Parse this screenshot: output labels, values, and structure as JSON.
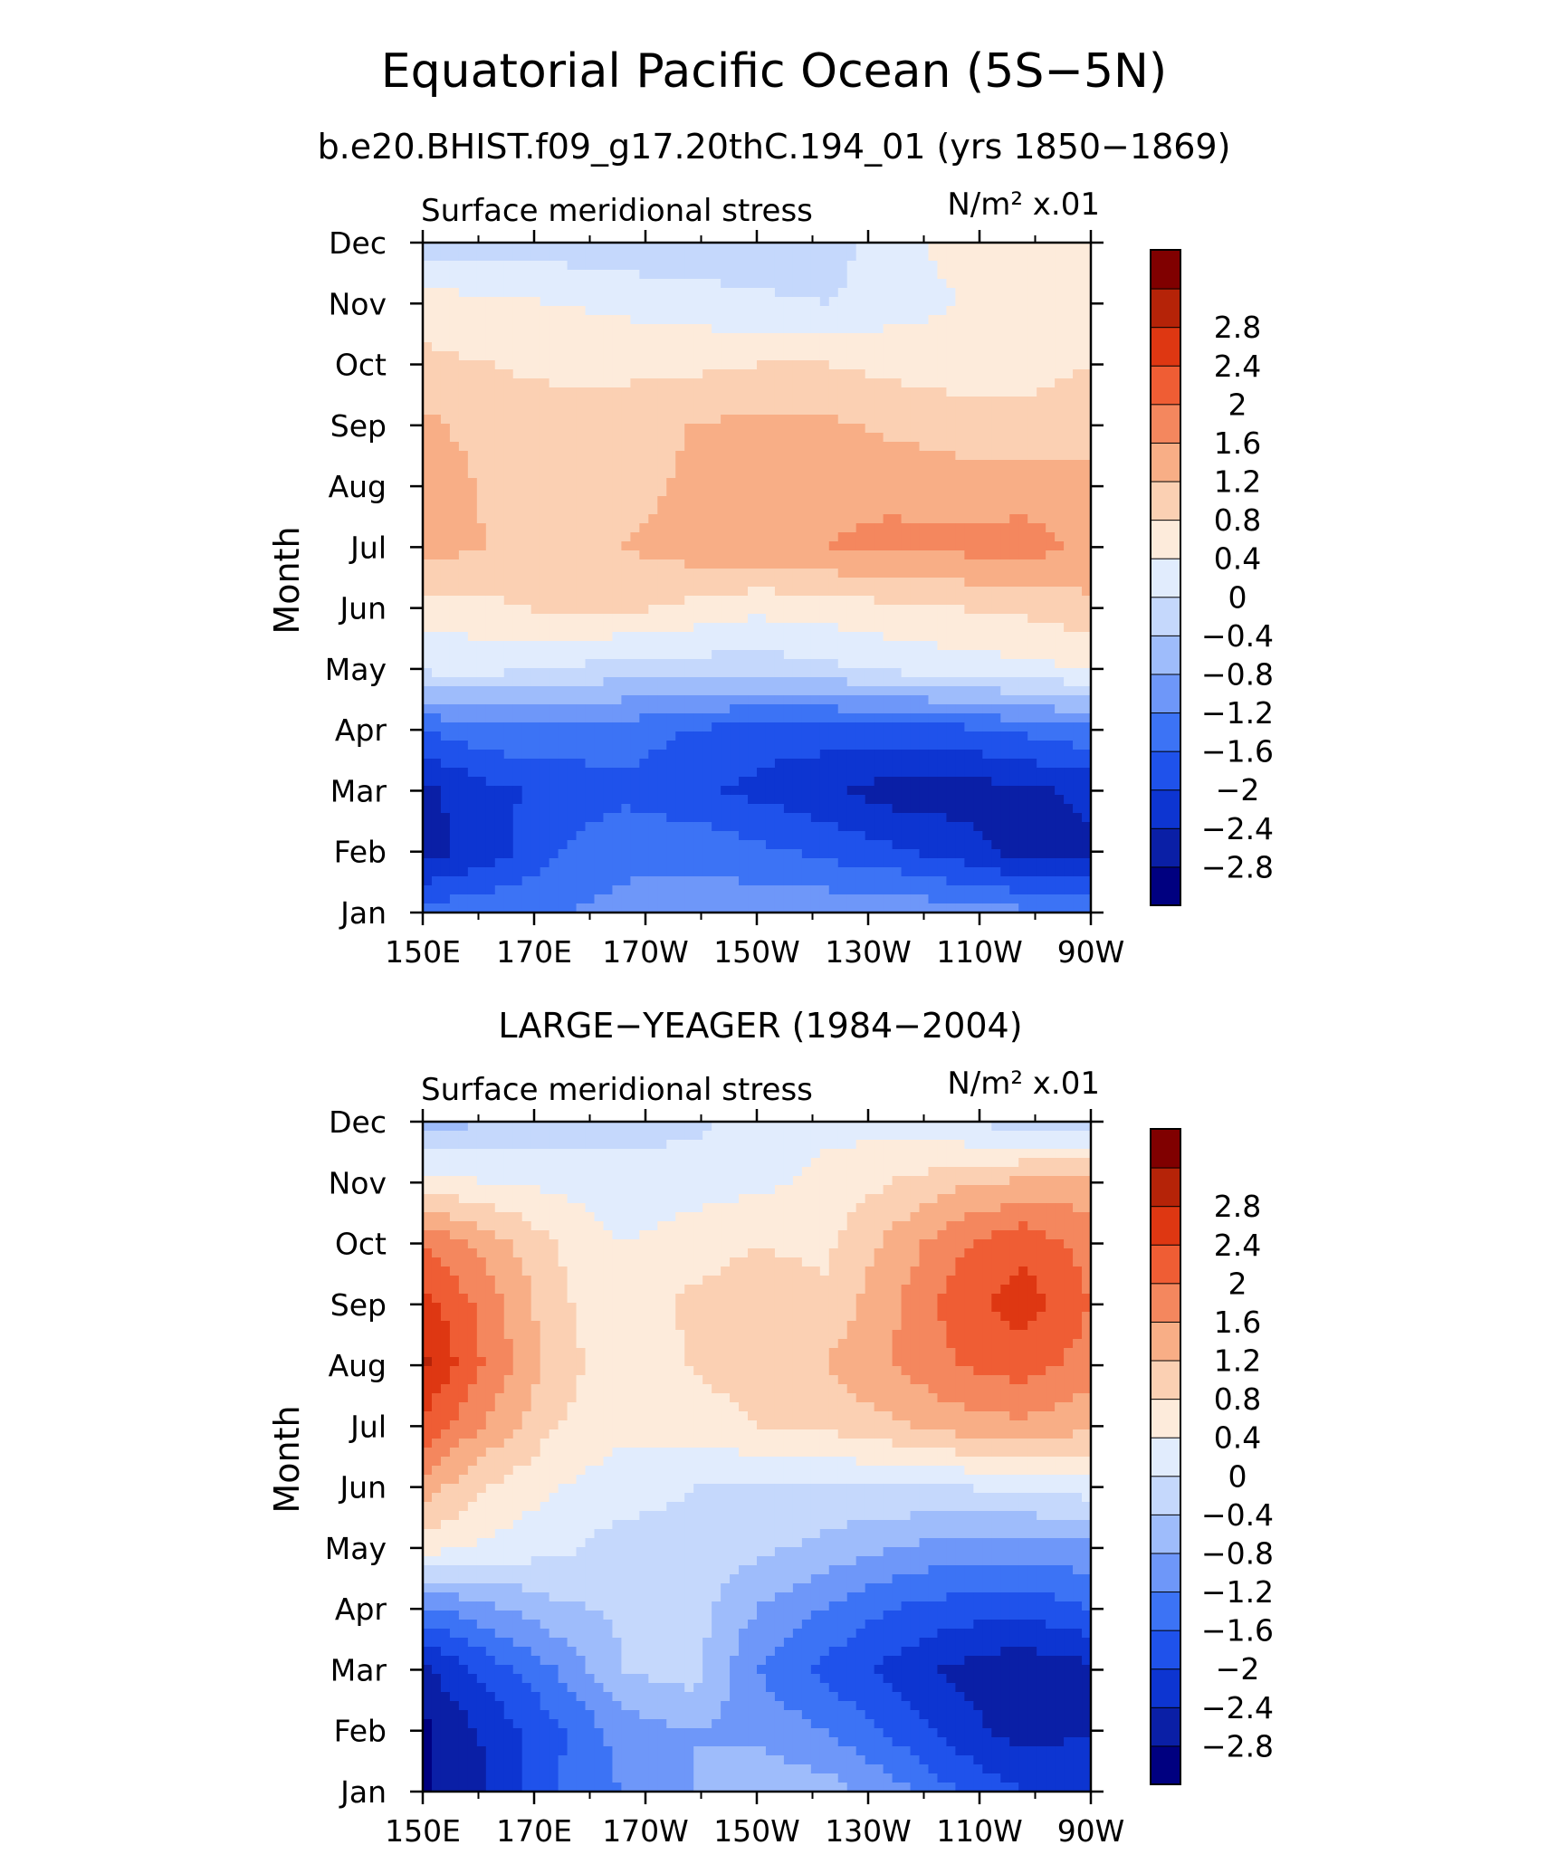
{
  "figure": {
    "title": "Equatorial Pacific Ocean (5S−5N)"
  },
  "color_scale": {
    "colors": [
      "#000080",
      "#0a1fa6",
      "#0d35d1",
      "#1f52eb",
      "#3c73f5",
      "#6e97f9",
      "#9ebcfb",
      "#c5d8fc",
      "#e1ecfd",
      "#fdebdb",
      "#fbd0b3",
      "#f8ae86",
      "#f4875e",
      "#ef5d34",
      "#de3712",
      "#b52308",
      "#800000"
    ],
    "labels": [
      "−2.8",
      "−2.4",
      "−2",
      "−1.6",
      "−1.2",
      "−0.8",
      "−0.4",
      "0",
      "0.4",
      "0.8",
      "1.2",
      "1.6",
      "2",
      "2.4",
      "2.8"
    ]
  },
  "chart_data": [
    {
      "type": "heatmap",
      "title": "b.e20.BHIST.f09_g17.20thC.194_01 (yrs 1850−1869)",
      "subtitle_left": "Surface meridional stress",
      "units": "N/m² x.01",
      "ylabel": "Month",
      "x_ticks": [
        "150E",
        "170E",
        "170W",
        "150W",
        "130W",
        "110W",
        "90W"
      ],
      "y_ticks": [
        "Jan",
        "Feb",
        "Mar",
        "Apr",
        "May",
        "Jun",
        "Jul",
        "Aug",
        "Sep",
        "Oct",
        "Nov",
        "Dec"
      ],
      "xlim": [
        "150E",
        "90W"
      ],
      "values": [
        [
          -1.4,
          -1.3,
          -1.2,
          -1.1,
          -1.0,
          -0.9,
          -0.9,
          -0.9,
          -1.0,
          -1.1,
          -1.3
        ],
        [
          -2.6,
          -2.2,
          -1.6,
          -1.3,
          -1.3,
          -1.5,
          -1.7,
          -1.9,
          -2.2,
          -2.6,
          -2.5
        ],
        [
          -2.5,
          -2.1,
          -1.9,
          -1.7,
          -1.9,
          -2.1,
          -2.3,
          -2.6,
          -2.6,
          -2.5,
          -2.3
        ],
        [
          -1.6,
          -1.3,
          -1.3,
          -1.4,
          -1.6,
          -1.8,
          -1.8,
          -1.8,
          -1.7,
          -1.5,
          -1.3
        ],
        [
          0.1,
          0.1,
          0.0,
          -0.2,
          -0.2,
          -0.2,
          -0.1,
          0.1,
          0.2,
          0.3,
          0.4
        ],
        [
          0.6,
          0.7,
          0.9,
          0.9,
          0.7,
          0.5,
          0.6,
          0.7,
          0.8,
          0.9,
          1.1
        ],
        [
          1.4,
          1.2,
          1.2,
          1.2,
          1.4,
          1.5,
          1.6,
          1.7,
          1.7,
          1.8,
          1.5
        ],
        [
          1.6,
          1.1,
          1.0,
          1.0,
          1.3,
          1.4,
          1.5,
          1.5,
          1.4,
          1.4,
          1.3
        ],
        [
          1.3,
          1.0,
          1.0,
          1.0,
          1.2,
          1.3,
          1.3,
          1.1,
          1.0,
          1.0,
          1.1
        ],
        [
          0.9,
          0.8,
          0.7,
          0.7,
          0.7,
          0.8,
          0.8,
          0.7,
          0.6,
          0.6,
          0.8
        ],
        [
          0.6,
          0.5,
          0.4,
          0.3,
          0.2,
          0.1,
          0.0,
          0.2,
          0.4,
          0.6,
          0.7
        ],
        [
          -0.3,
          -0.2,
          -0.2,
          -0.3,
          -0.3,
          -0.3,
          -0.3,
          0.3,
          0.5,
          0.6,
          0.5
        ]
      ]
    },
    {
      "type": "heatmap",
      "title": "LARGE−YEAGER (1984−2004)",
      "subtitle_left": "Surface meridional stress",
      "units": "N/m² x.01",
      "ylabel": "Month",
      "x_ticks": [
        "150E",
        "170E",
        "170W",
        "150W",
        "130W",
        "110W",
        "90W"
      ],
      "y_ticks": [
        "Jan",
        "Feb",
        "Mar",
        "Apr",
        "May",
        "Jun",
        "Jul",
        "Aug",
        "Sep",
        "Oct",
        "Nov",
        "Dec"
      ],
      "xlim": [
        "150E",
        "90W"
      ],
      "values": [
        [
          -2.9,
          -2.4,
          -1.6,
          -1.2,
          -0.8,
          -0.5,
          -0.6,
          -1.0,
          -1.6,
          -2.0,
          -2.1
        ],
        [
          -2.9,
          -2.3,
          -1.7,
          -1.0,
          -0.8,
          -0.9,
          -1.2,
          -1.7,
          -2.2,
          -2.6,
          -2.4
        ],
        [
          -2.5,
          -1.8,
          -1.2,
          -0.4,
          -0.2,
          -1.2,
          -1.7,
          -2.1,
          -2.5,
          -2.7,
          -2.5
        ],
        [
          -1.3,
          -0.9,
          -0.5,
          -0.3,
          -0.2,
          -0.8,
          -1.2,
          -1.6,
          -1.8,
          -1.9,
          -1.6
        ],
        [
          0.6,
          0.3,
          0.1,
          -0.2,
          -0.1,
          -0.3,
          -0.5,
          -0.8,
          -1.0,
          -1.0,
          -0.9
        ],
        [
          1.4,
          0.8,
          0.4,
          0.2,
          0.0,
          -0.1,
          -0.1,
          0.0,
          0.0,
          0.1,
          0.2
        ],
        [
          2.3,
          1.5,
          0.8,
          0.5,
          0.6,
          0.8,
          0.9,
          1.1,
          1.4,
          1.5,
          1.3
        ],
        [
          2.9,
          1.9,
          1.0,
          0.5,
          0.8,
          1.0,
          1.2,
          1.6,
          2.0,
          2.2,
          1.8
        ],
        [
          2.6,
          1.8,
          0.9,
          0.5,
          0.9,
          1.0,
          0.9,
          1.5,
          2.2,
          2.6,
          2.0
        ],
        [
          2.0,
          1.4,
          0.8,
          0.4,
          0.6,
          0.8,
          0.7,
          1.3,
          1.9,
          2.3,
          1.8
        ],
        [
          0.6,
          0.4,
          0.3,
          0.1,
          0.2,
          0.3,
          0.5,
          0.8,
          1.1,
          1.3,
          1.4
        ],
        [
          -0.6,
          -0.4,
          -0.2,
          -0.1,
          -0.1,
          0.2,
          0.3,
          0.2,
          0.0,
          -0.2,
          -0.3
        ]
      ]
    }
  ]
}
